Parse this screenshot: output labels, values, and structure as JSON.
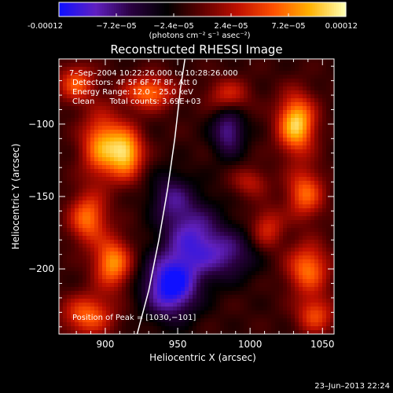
{
  "colorbar": {
    "ticks": [
      {
        "value": -0.00012,
        "label": "-0.00012"
      },
      {
        "value": -7.2e-05,
        "label": "−7.2e−05"
      },
      {
        "value": -2.4e-05,
        "label": "−2.4e−05"
      },
      {
        "value": 2.4e-05,
        "label": "2.4e−05"
      },
      {
        "value": 7.2e-05,
        "label": "7.2e−05"
      },
      {
        "value": 0.00012,
        "label": "0.00012"
      }
    ],
    "range": [
      -0.00012,
      0.00012
    ],
    "units": "(photons cm⁻² s⁻¹ asec⁻²)",
    "colors": [
      "#1010ff",
      "#6020c0",
      "#2a0040",
      "#000000",
      "#600000",
      "#c01000",
      "#ff5000",
      "#ffb000",
      "#ffffb0"
    ]
  },
  "chart_data": {
    "type": "heatmap",
    "title": "Reconstructed RHESSI Image",
    "xlabel": "Heliocentric X (arcsec)",
    "ylabel": "Heliocentric Y (arcsec)",
    "xlim": [
      868,
      1058
    ],
    "ylim": [
      -245,
      -55
    ],
    "xticks": [
      900,
      950,
      1000,
      1050
    ],
    "yticks": [
      -100,
      -150,
      -200
    ],
    "annotations": [
      "7–Sep–2004 10:22:26.000 to 10:28:26.000",
      "Detectors: 4F 5F 6F 7F 8F, Att 0",
      "Energy Range: 12.0 – 25.0 keV",
      "Clean      Total counts: 3.69E+03"
    ],
    "peak_label": "Position of Peak = [1030,−101]",
    "peak": [
      1030,
      -101
    ],
    "limb_curve": [
      [
        922,
        -245
      ],
      [
        930,
        -215
      ],
      [
        937,
        -180
      ],
      [
        943,
        -145
      ],
      [
        948,
        -110
      ],
      [
        952,
        -75
      ],
      [
        955,
        -55
      ]
    ],
    "sources": [
      {
        "x": 1032,
        "y": -100,
        "sx": 9,
        "sy": 14,
        "amp": 1.0
      },
      {
        "x": 1038,
        "y": -148,
        "sx": 9,
        "sy": 12,
        "amp": 0.65
      },
      {
        "x": 1040,
        "y": -200,
        "sx": 10,
        "sy": 12,
        "amp": 0.7
      },
      {
        "x": 1045,
        "y": -232,
        "sx": 9,
        "sy": 9,
        "amp": 0.55
      },
      {
        "x": 1012,
        "y": -172,
        "sx": 8,
        "sy": 10,
        "amp": 0.45
      },
      {
        "x": 898,
        "y": -115,
        "sx": 10,
        "sy": 16,
        "amp": 0.8
      },
      {
        "x": 915,
        "y": -120,
        "sx": 8,
        "sy": 12,
        "amp": 0.85
      },
      {
        "x": 888,
        "y": -165,
        "sx": 9,
        "sy": 12,
        "amp": 0.7
      },
      {
        "x": 905,
        "y": -196,
        "sx": 9,
        "sy": 12,
        "amp": 0.8
      },
      {
        "x": 888,
        "y": -232,
        "sx": 12,
        "sy": 10,
        "amp": 0.65
      },
      {
        "x": 930,
        "y": -78,
        "sx": 12,
        "sy": 8,
        "amp": 0.7
      },
      {
        "x": 880,
        "y": -72,
        "sx": 9,
        "sy": 9,
        "amp": 0.6
      },
      {
        "x": 985,
        "y": -80,
        "sx": 10,
        "sy": 8,
        "amp": 0.45
      },
      {
        "x": 1000,
        "y": -140,
        "sx": 9,
        "sy": 7,
        "amp": 0.35
      },
      {
        "x": 945,
        "y": -212,
        "sx": 13,
        "sy": 15,
        "amp": -0.9
      },
      {
        "x": 960,
        "y": -178,
        "sx": 14,
        "sy": 18,
        "amp": -0.6
      },
      {
        "x": 985,
        "y": -105,
        "sx": 8,
        "sy": 12,
        "amp": -0.55
      },
      {
        "x": 985,
        "y": -190,
        "sx": 14,
        "sy": 12,
        "amp": -0.45
      },
      {
        "x": 945,
        "y": -150,
        "sx": 10,
        "sy": 12,
        "amp": -0.4
      }
    ]
  },
  "footer": {
    "timestamp": "23–Jun–2013 22:24"
  }
}
